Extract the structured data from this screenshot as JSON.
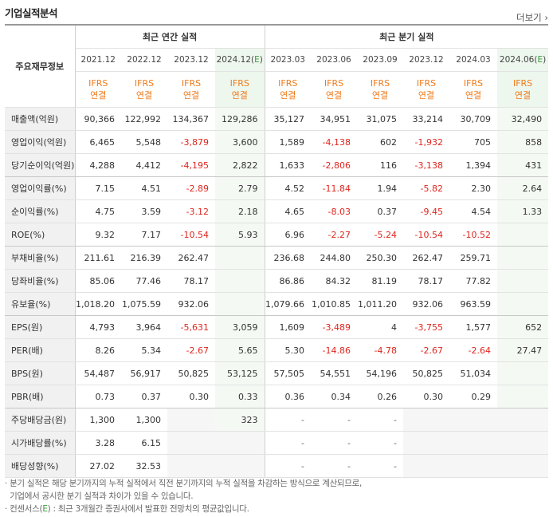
{
  "header": {
    "title": "기업실적분석",
    "more_label": "더보기"
  },
  "table": {
    "corner_label": "주요재무정보",
    "group_annual": "최근 연간 실적",
    "group_quarter": "최근 분기 실적",
    "periods": [
      "2021.12",
      "2022.12",
      "2023.12",
      "2024.12(E)",
      "2023.03",
      "2023.06",
      "2023.09",
      "2023.12",
      "2024.03",
      "2024.06(E)"
    ],
    "ifrs": "IFRS",
    "basis": "연결",
    "rows": [
      {
        "label": "매출액(억원)",
        "values": [
          "90,366",
          "122,992",
          "134,367",
          "129,286",
          "35,127",
          "34,951",
          "31,075",
          "33,214",
          "30,709",
          "32,490"
        ]
      },
      {
        "label": "영업이익(억원)",
        "values": [
          "6,465",
          "5,548",
          "-3,879",
          "3,600",
          "1,589",
          "-4,138",
          "602",
          "-1,932",
          "705",
          "858"
        ]
      },
      {
        "label": "당기순이익(억원)",
        "values": [
          "4,288",
          "4,412",
          "-4,195",
          "2,822",
          "1,633",
          "-2,806",
          "116",
          "-3,138",
          "1,394",
          "431"
        ]
      },
      {
        "label": "영업이익률(%)",
        "values": [
          "7.15",
          "4.51",
          "-2.89",
          "2.79",
          "4.52",
          "-11.84",
          "1.94",
          "-5.82",
          "2.30",
          "2.64"
        ]
      },
      {
        "label": "순이익률(%)",
        "values": [
          "4.75",
          "3.59",
          "-3.12",
          "2.18",
          "4.65",
          "-8.03",
          "0.37",
          "-9.45",
          "4.54",
          "1.33"
        ]
      },
      {
        "label": "ROE(%)",
        "values": [
          "9.32",
          "7.17",
          "-10.54",
          "5.93",
          "6.96",
          "-2.27",
          "-5.24",
          "-10.54",
          "-10.52",
          ""
        ]
      },
      {
        "label": "부채비율(%)",
        "values": [
          "211.61",
          "216.39",
          "262.47",
          "",
          "236.68",
          "244.80",
          "250.30",
          "262.47",
          "259.71",
          ""
        ]
      },
      {
        "label": "당좌비율(%)",
        "values": [
          "85.06",
          "77.46",
          "78.17",
          "",
          "86.86",
          "84.32",
          "81.19",
          "78.17",
          "77.82",
          ""
        ]
      },
      {
        "label": "유보율(%)",
        "values": [
          "1,018.20",
          "1,075.59",
          "932.06",
          "",
          "1,079.66",
          "1,010.85",
          "1,011.20",
          "932.06",
          "963.59",
          ""
        ]
      },
      {
        "label": "EPS(원)",
        "values": [
          "4,793",
          "3,964",
          "-5,631",
          "3,059",
          "1,609",
          "-3,489",
          "4",
          "-3,755",
          "1,577",
          "652"
        ]
      },
      {
        "label": "PER(배)",
        "values": [
          "8.26",
          "5.34",
          "-2.67",
          "5.65",
          "5.30",
          "-14.86",
          "-4.78",
          "-2.67",
          "-2.64",
          "27.47"
        ]
      },
      {
        "label": "BPS(원)",
        "values": [
          "54,487",
          "56,917",
          "50,825",
          "53,125",
          "57,505",
          "54,551",
          "54,196",
          "50,825",
          "51,034",
          ""
        ]
      },
      {
        "label": "PBR(배)",
        "values": [
          "0.73",
          "0.37",
          "0.30",
          "0.33",
          "0.36",
          "0.34",
          "0.26",
          "0.30",
          "0.29",
          ""
        ]
      },
      {
        "label": "주당배당금(원)",
        "values": [
          "1,300",
          "1,300",
          "",
          "323",
          "-",
          "-",
          "-",
          "",
          "",
          ""
        ]
      },
      {
        "label": "시가배당률(%)",
        "values": [
          "3.28",
          "6.15",
          "",
          "",
          "-",
          "-",
          "-",
          "",
          "",
          ""
        ]
      },
      {
        "label": "배당성향(%)",
        "values": [
          "27.02",
          "32.53",
          "",
          "",
          "-",
          "-",
          "-",
          "",
          "",
          ""
        ]
      }
    ]
  },
  "footnotes": {
    "line1": "· 분기 실적은 해당 분기까지의 누적 실적에서 직전 분기까지의 누적 실적을 차감하는 방식으로 계산되므로,",
    "line2": "  기업에서 공시한 분기 실적과 차이가 있을 수 있습니다.",
    "line3_prefix": "· 컨센서스(",
    "line3_e": "E",
    "line3_suffix": ") : 최근 3개월간 증권사에서 발표한 전망치의 평균값입니다."
  }
}
